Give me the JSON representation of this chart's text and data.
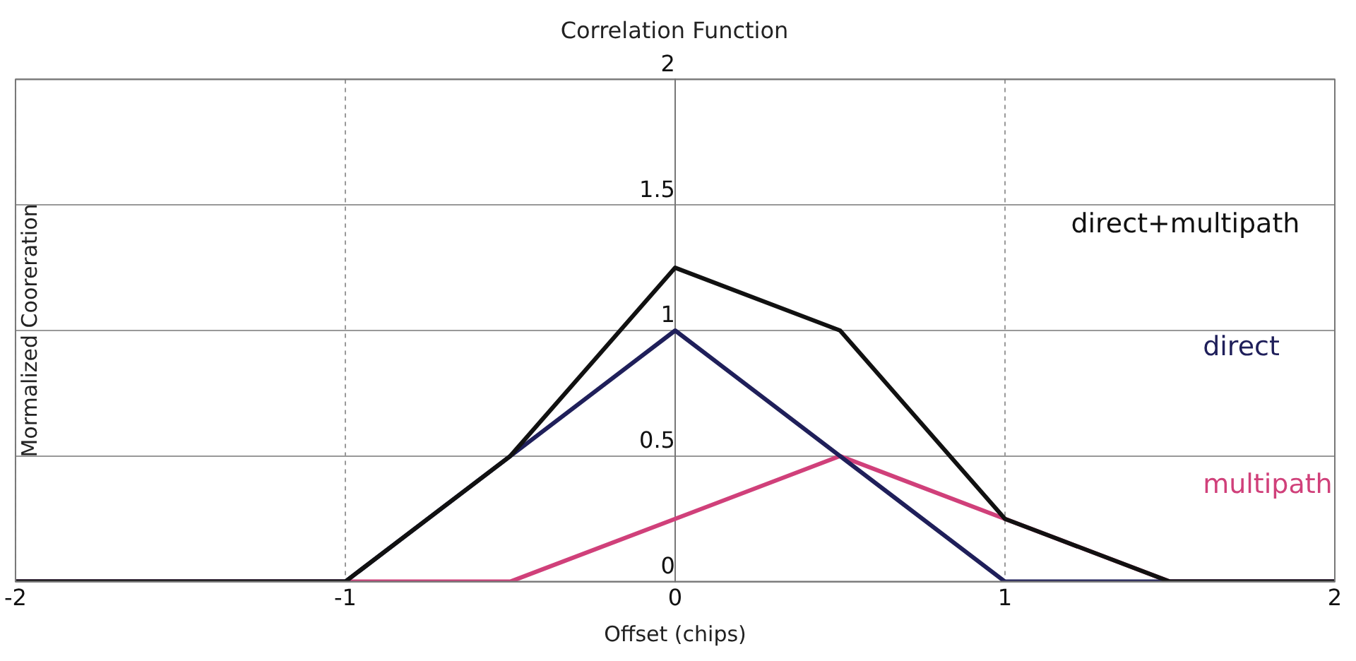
{
  "chart_data": {
    "type": "line",
    "title": "Correlation Function",
    "xlabel": "Offset (chips)",
    "ylabel": "Mormalized Cooreration",
    "x": [
      -2,
      -1,
      -0.5,
      0,
      0.5,
      1,
      1.5,
      2
    ],
    "series": [
      {
        "name": "direct+multipath",
        "color": "#111111",
        "values": [
          0,
          0,
          0.5,
          1.25,
          1,
          0.25,
          0,
          0
        ]
      },
      {
        "name": "direct",
        "color": "#1f1f5a",
        "values": [
          0,
          0,
          0.5,
          1,
          0.5,
          0,
          0,
          0
        ]
      },
      {
        "name": "multipath",
        "color": "#d0407a",
        "values": [
          0,
          0,
          0,
          0.25,
          0.5,
          0.25,
          0,
          0
        ]
      }
    ],
    "xlim": [
      -2,
      2
    ],
    "xticks": [
      -2,
      -1,
      0,
      1,
      2
    ],
    "ylim": [
      0,
      2
    ],
    "yticks": [
      0,
      0.5,
      1,
      1.5,
      2
    ],
    "grid": true,
    "legend": false,
    "marker": "none",
    "line_style": "solid"
  }
}
